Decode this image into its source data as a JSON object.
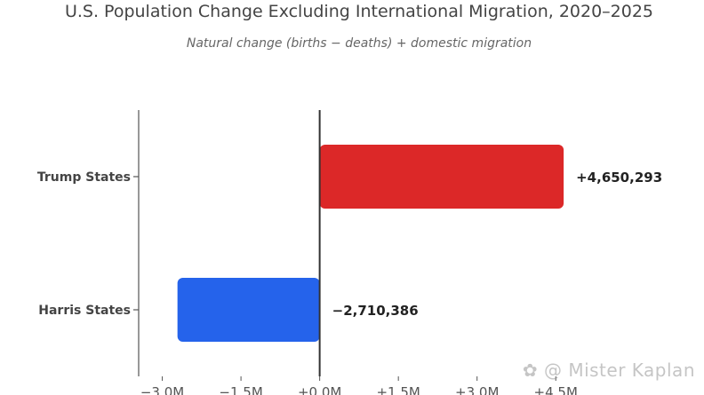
{
  "chart_data": {
    "type": "bar",
    "orientation": "horizontal",
    "title": "U.S. Population Change Excluding International Migration, 2020–2025",
    "subtitle": "Natural change (births − deaths) + domestic migration",
    "categories": [
      "Trump States",
      "Harris States"
    ],
    "values": [
      4650293,
      -2710386
    ],
    "value_labels": [
      "+4,650,293",
      "−2,710,386"
    ],
    "colors": [
      "#dc2828",
      "#2563eb"
    ],
    "xlim": [
      -3450000,
      4750000
    ],
    "xticks": [
      -3000000,
      -1500000,
      0,
      1500000,
      3000000,
      4500000
    ],
    "xtick_labels": [
      "−3.0M",
      "−1.5M",
      "+0.0M",
      "+1.5M",
      "+3.0M",
      "+4.5M"
    ],
    "grid": false,
    "legend": "none"
  },
  "watermark": "@ Mister Kaplan",
  "watermark_icon": "paw-print-icon"
}
